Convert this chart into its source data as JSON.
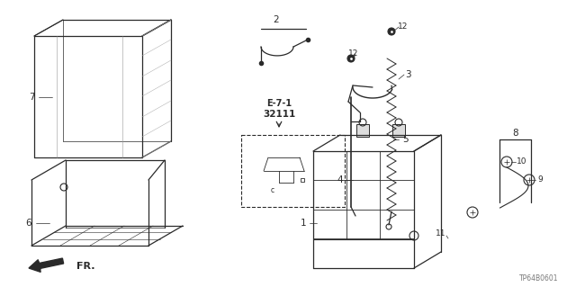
{
  "bg": "#ffffff",
  "lc": "#2a2a2a",
  "lc_light": "#888888",
  "figsize": [
    6.4,
    3.19
  ],
  "dpi": 100,
  "xlim": [
    0,
    640
  ],
  "ylim": [
    0,
    319
  ],
  "parts_ref": "TP64B0601"
}
